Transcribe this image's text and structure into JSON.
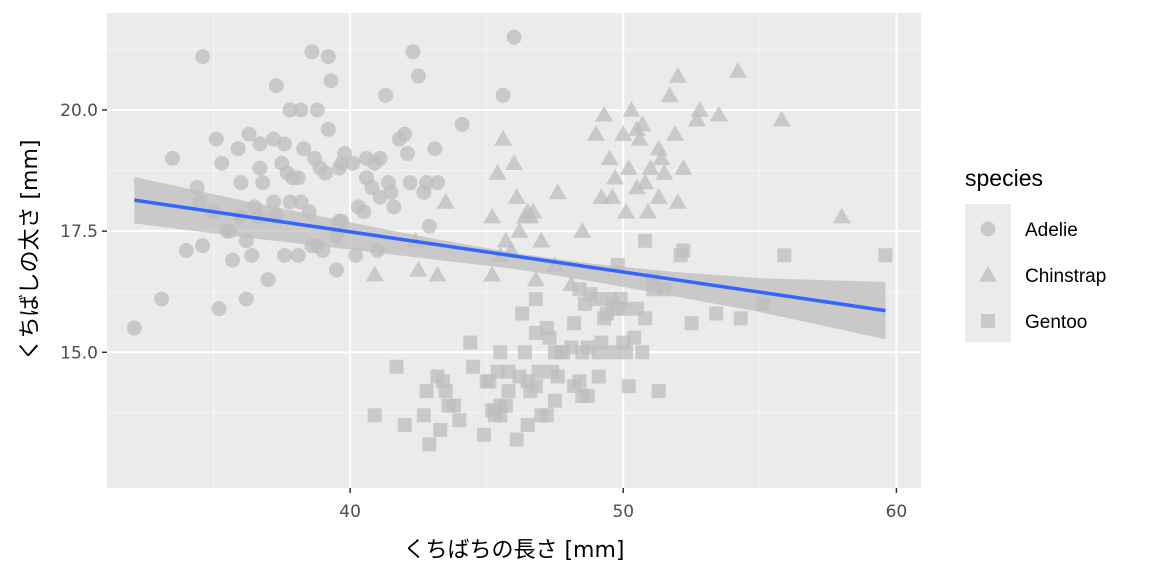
{
  "chart_data": {
    "type": "scatter",
    "xlabel": "くちばちの長さ [mm]",
    "ylabel": "くちばしの太さ [mm]",
    "xlim": [
      31.1,
      60.9
    ],
    "ylim": [
      12.2,
      22.0
    ],
    "x_ticks": [
      40,
      50,
      60
    ],
    "y_ticks": [
      15.0,
      17.5,
      20.0
    ],
    "x_tick_labels": [
      "40",
      "50",
      "60"
    ],
    "y_tick_labels": [
      "15.0",
      "17.5",
      "20.0"
    ],
    "grid": true,
    "legend": {
      "title": "species",
      "position": "right",
      "entries": [
        {
          "label": "Adelie",
          "shape": "circle"
        },
        {
          "label": "Chinstrap",
          "shape": "triangle"
        },
        {
          "label": "Gentoo",
          "shape": "square"
        }
      ]
    },
    "colors": {
      "panel": "#ebebeb",
      "grid_major": "#ffffff",
      "grid_minor": "#f5f5f5",
      "points": "#bebebe",
      "fit_line": "#3366ff",
      "ribbon": "#bdbdbd"
    },
    "fit": {
      "method": "lm",
      "points": [
        [
          32.1,
          18.14
        ],
        [
          59.6,
          15.86
        ]
      ],
      "ribbon_upper": [
        [
          32.1,
          18.62
        ],
        [
          36,
          18.14
        ],
        [
          40,
          17.68
        ],
        [
          43,
          17.35
        ],
        [
          46,
          17.05
        ],
        [
          49,
          16.82
        ],
        [
          52,
          16.65
        ],
        [
          55,
          16.53
        ],
        [
          59.6,
          16.45
        ]
      ],
      "ribbon_lower": [
        [
          32.1,
          17.66
        ],
        [
          36,
          17.38
        ],
        [
          40,
          17.12
        ],
        [
          43,
          16.92
        ],
        [
          46,
          16.72
        ],
        [
          49,
          16.45
        ],
        [
          52,
          16.14
        ],
        [
          55,
          15.83
        ],
        [
          59.6,
          15.27
        ]
      ]
    },
    "series": [
      {
        "name": "Adelie",
        "shape": "circle",
        "points": [
          [
            32.1,
            15.5
          ],
          [
            33.1,
            16.1
          ],
          [
            33.5,
            19.0
          ],
          [
            34.0,
            17.1
          ],
          [
            34.4,
            18.4
          ],
          [
            34.5,
            18.1
          ],
          [
            34.6,
            21.1
          ],
          [
            34.6,
            17.2
          ],
          [
            35.0,
            17.9
          ],
          [
            35.1,
            19.4
          ],
          [
            35.2,
            15.9
          ],
          [
            35.3,
            18.9
          ],
          [
            35.5,
            17.5
          ],
          [
            35.6,
            17.5
          ],
          [
            35.7,
            16.9
          ],
          [
            35.9,
            19.2
          ],
          [
            36.0,
            18.5
          ],
          [
            36.0,
            17.8
          ],
          [
            36.2,
            16.1
          ],
          [
            36.2,
            17.3
          ],
          [
            36.3,
            19.5
          ],
          [
            36.4,
            17.0
          ],
          [
            36.5,
            18.0
          ],
          [
            36.6,
            17.8
          ],
          [
            36.7,
            18.8
          ],
          [
            36.7,
            19.3
          ],
          [
            36.8,
            18.5
          ],
          [
            37.0,
            16.5
          ],
          [
            37.2,
            18.1
          ],
          [
            37.2,
            19.4
          ],
          [
            37.3,
            17.8
          ],
          [
            37.3,
            20.5
          ],
          [
            37.5,
            18.9
          ],
          [
            37.6,
            17.0
          ],
          [
            37.6,
            19.3
          ],
          [
            37.7,
            18.7
          ],
          [
            37.8,
            18.1
          ],
          [
            37.8,
            20.0
          ],
          [
            37.9,
            18.6
          ],
          [
            38.1,
            17.0
          ],
          [
            38.1,
            18.6
          ],
          [
            38.2,
            18.1
          ],
          [
            38.2,
            20.0
          ],
          [
            38.3,
            19.2
          ],
          [
            38.5,
            17.9
          ],
          [
            38.6,
            21.2
          ],
          [
            38.6,
            17.2
          ],
          [
            38.7,
            19.0
          ],
          [
            38.8,
            17.2
          ],
          [
            38.8,
            20.0
          ],
          [
            38.9,
            18.8
          ],
          [
            39.0,
            17.1
          ],
          [
            39.1,
            18.7
          ],
          [
            39.2,
            19.6
          ],
          [
            39.2,
            21.1
          ],
          [
            39.3,
            20.6
          ],
          [
            39.5,
            16.7
          ],
          [
            39.5,
            17.4
          ],
          [
            39.6,
            17.7
          ],
          [
            39.6,
            18.8
          ],
          [
            39.7,
            17.7
          ],
          [
            39.7,
            18.9
          ],
          [
            39.8,
            19.1
          ],
          [
            40.1,
            18.9
          ],
          [
            40.2,
            17.0
          ],
          [
            40.3,
            18.0
          ],
          [
            40.5,
            17.9
          ],
          [
            40.6,
            18.6
          ],
          [
            40.6,
            19.0
          ],
          [
            40.8,
            18.4
          ],
          [
            40.9,
            18.9
          ],
          [
            41.0,
            17.1
          ],
          [
            41.1,
            18.2
          ],
          [
            41.1,
            19.0
          ],
          [
            41.3,
            20.3
          ],
          [
            41.4,
            18.5
          ],
          [
            41.5,
            18.3
          ],
          [
            41.6,
            18.0
          ],
          [
            41.8,
            19.4
          ],
          [
            42.0,
            19.5
          ],
          [
            42.1,
            19.1
          ],
          [
            42.2,
            18.5
          ],
          [
            42.3,
            21.2
          ],
          [
            42.5,
            20.7
          ],
          [
            42.7,
            18.3
          ],
          [
            42.8,
            18.5
          ],
          [
            42.9,
            17.6
          ],
          [
            43.1,
            19.2
          ],
          [
            43.2,
            18.5
          ],
          [
            44.1,
            19.7
          ],
          [
            45.6,
            20.3
          ],
          [
            46.0,
            21.5
          ]
        ]
      },
      {
        "name": "Chinstrap",
        "shape": "triangle",
        "points": [
          [
            40.9,
            16.6
          ],
          [
            42.4,
            17.3
          ],
          [
            42.5,
            16.7
          ],
          [
            43.2,
            16.6
          ],
          [
            43.5,
            18.1
          ],
          [
            45.2,
            16.6
          ],
          [
            45.2,
            17.8
          ],
          [
            45.4,
            18.7
          ],
          [
            45.5,
            17.0
          ],
          [
            45.6,
            19.4
          ],
          [
            45.7,
            17.3
          ],
          [
            45.9,
            17.1
          ],
          [
            46.0,
            18.9
          ],
          [
            46.1,
            18.2
          ],
          [
            46.2,
            17.5
          ],
          [
            46.4,
            17.8
          ],
          [
            46.5,
            17.9
          ],
          [
            46.6,
            17.8
          ],
          [
            46.7,
            17.9
          ],
          [
            46.8,
            16.5
          ],
          [
            47.0,
            17.3
          ],
          [
            47.5,
            16.8
          ],
          [
            47.6,
            18.3
          ],
          [
            48.1,
            16.4
          ],
          [
            48.5,
            17.5
          ],
          [
            49.0,
            19.5
          ],
          [
            49.2,
            18.2
          ],
          [
            49.3,
            19.9
          ],
          [
            49.5,
            19.0
          ],
          [
            49.6,
            18.2
          ],
          [
            49.7,
            18.6
          ],
          [
            50.0,
            19.5
          ],
          [
            50.1,
            17.9
          ],
          [
            50.2,
            18.8
          ],
          [
            50.3,
            20.0
          ],
          [
            50.5,
            18.4
          ],
          [
            50.5,
            19.6
          ],
          [
            50.6,
            19.4
          ],
          [
            50.7,
            19.7
          ],
          [
            50.8,
            18.5
          ],
          [
            50.9,
            17.9
          ],
          [
            51.0,
            18.8
          ],
          [
            51.3,
            18.2
          ],
          [
            51.3,
            19.2
          ],
          [
            51.4,
            19.0
          ],
          [
            51.5,
            18.7
          ],
          [
            51.7,
            20.3
          ],
          [
            51.9,
            19.5
          ],
          [
            52.0,
            18.1
          ],
          [
            52.0,
            20.7
          ],
          [
            52.2,
            18.8
          ],
          [
            52.7,
            19.8
          ],
          [
            52.8,
            20.0
          ],
          [
            53.5,
            19.9
          ],
          [
            54.2,
            20.8
          ],
          [
            55.8,
            19.8
          ],
          [
            58.0,
            17.8
          ]
        ]
      },
      {
        "name": "Gentoo",
        "shape": "square",
        "points": [
          [
            40.9,
            13.7
          ],
          [
            41.7,
            14.7
          ],
          [
            42.0,
            13.5
          ],
          [
            42.7,
            13.7
          ],
          [
            42.8,
            14.2
          ],
          [
            42.9,
            13.1
          ],
          [
            43.2,
            14.5
          ],
          [
            43.3,
            13.4
          ],
          [
            43.4,
            14.4
          ],
          [
            43.5,
            14.2
          ],
          [
            43.6,
            13.9
          ],
          [
            43.8,
            13.9
          ],
          [
            44.0,
            13.6
          ],
          [
            44.4,
            15.2
          ],
          [
            44.5,
            14.7
          ],
          [
            44.9,
            13.3
          ],
          [
            45.0,
            14.4
          ],
          [
            45.1,
            14.4
          ],
          [
            45.2,
            13.8
          ],
          [
            45.3,
            13.7
          ],
          [
            45.3,
            13.8
          ],
          [
            45.4,
            14.6
          ],
          [
            45.5,
            13.7
          ],
          [
            45.5,
            13.9
          ],
          [
            45.5,
            15.0
          ],
          [
            45.7,
            13.9
          ],
          [
            45.8,
            14.2
          ],
          [
            45.8,
            14.6
          ],
          [
            46.1,
            13.2
          ],
          [
            46.2,
            14.5
          ],
          [
            46.3,
            15.8
          ],
          [
            46.4,
            15.0
          ],
          [
            46.5,
            13.5
          ],
          [
            46.5,
            14.4
          ],
          [
            46.6,
            14.2
          ],
          [
            46.8,
            14.3
          ],
          [
            46.8,
            15.4
          ],
          [
            46.8,
            16.1
          ],
          [
            46.9,
            14.6
          ],
          [
            47.0,
            13.7
          ],
          [
            47.2,
            13.7
          ],
          [
            47.2,
            15.5
          ],
          [
            47.3,
            15.3
          ],
          [
            47.4,
            14.6
          ],
          [
            47.5,
            14.0
          ],
          [
            47.5,
            15.0
          ],
          [
            47.6,
            14.5
          ],
          [
            47.7,
            15.0
          ],
          [
            47.8,
            15.0
          ],
          [
            48.1,
            15.1
          ],
          [
            48.2,
            14.3
          ],
          [
            48.2,
            15.6
          ],
          [
            48.4,
            14.4
          ],
          [
            48.4,
            16.3
          ],
          [
            48.5,
            14.1
          ],
          [
            48.5,
            15.0
          ],
          [
            48.6,
            16.0
          ],
          [
            48.7,
            14.1
          ],
          [
            48.7,
            15.1
          ],
          [
            48.8,
            16.2
          ],
          [
            49.0,
            16.1
          ],
          [
            49.1,
            14.5
          ],
          [
            49.1,
            15.0
          ],
          [
            49.2,
            15.2
          ],
          [
            49.3,
            15.7
          ],
          [
            49.4,
            15.8
          ],
          [
            49.5,
            16.1
          ],
          [
            49.6,
            15.0
          ],
          [
            49.6,
            16.0
          ],
          [
            49.8,
            15.9
          ],
          [
            49.8,
            16.8
          ],
          [
            49.9,
            16.1
          ],
          [
            50.0,
            15.2
          ],
          [
            50.0,
            15.9
          ],
          [
            50.1,
            15.0
          ],
          [
            50.2,
            14.3
          ],
          [
            50.4,
            15.3
          ],
          [
            50.5,
            15.9
          ],
          [
            50.7,
            15.0
          ],
          [
            50.8,
            15.7
          ],
          [
            50.8,
            17.3
          ],
          [
            51.1,
            16.3
          ],
          [
            51.1,
            16.5
          ],
          [
            51.3,
            14.2
          ],
          [
            51.5,
            16.3
          ],
          [
            52.1,
            17.0
          ],
          [
            52.2,
            17.1
          ],
          [
            52.5,
            15.6
          ],
          [
            53.4,
            15.8
          ],
          [
            54.3,
            15.7
          ],
          [
            55.1,
            16.0
          ],
          [
            55.9,
            17.0
          ],
          [
            59.6,
            17.0
          ]
        ]
      }
    ]
  }
}
